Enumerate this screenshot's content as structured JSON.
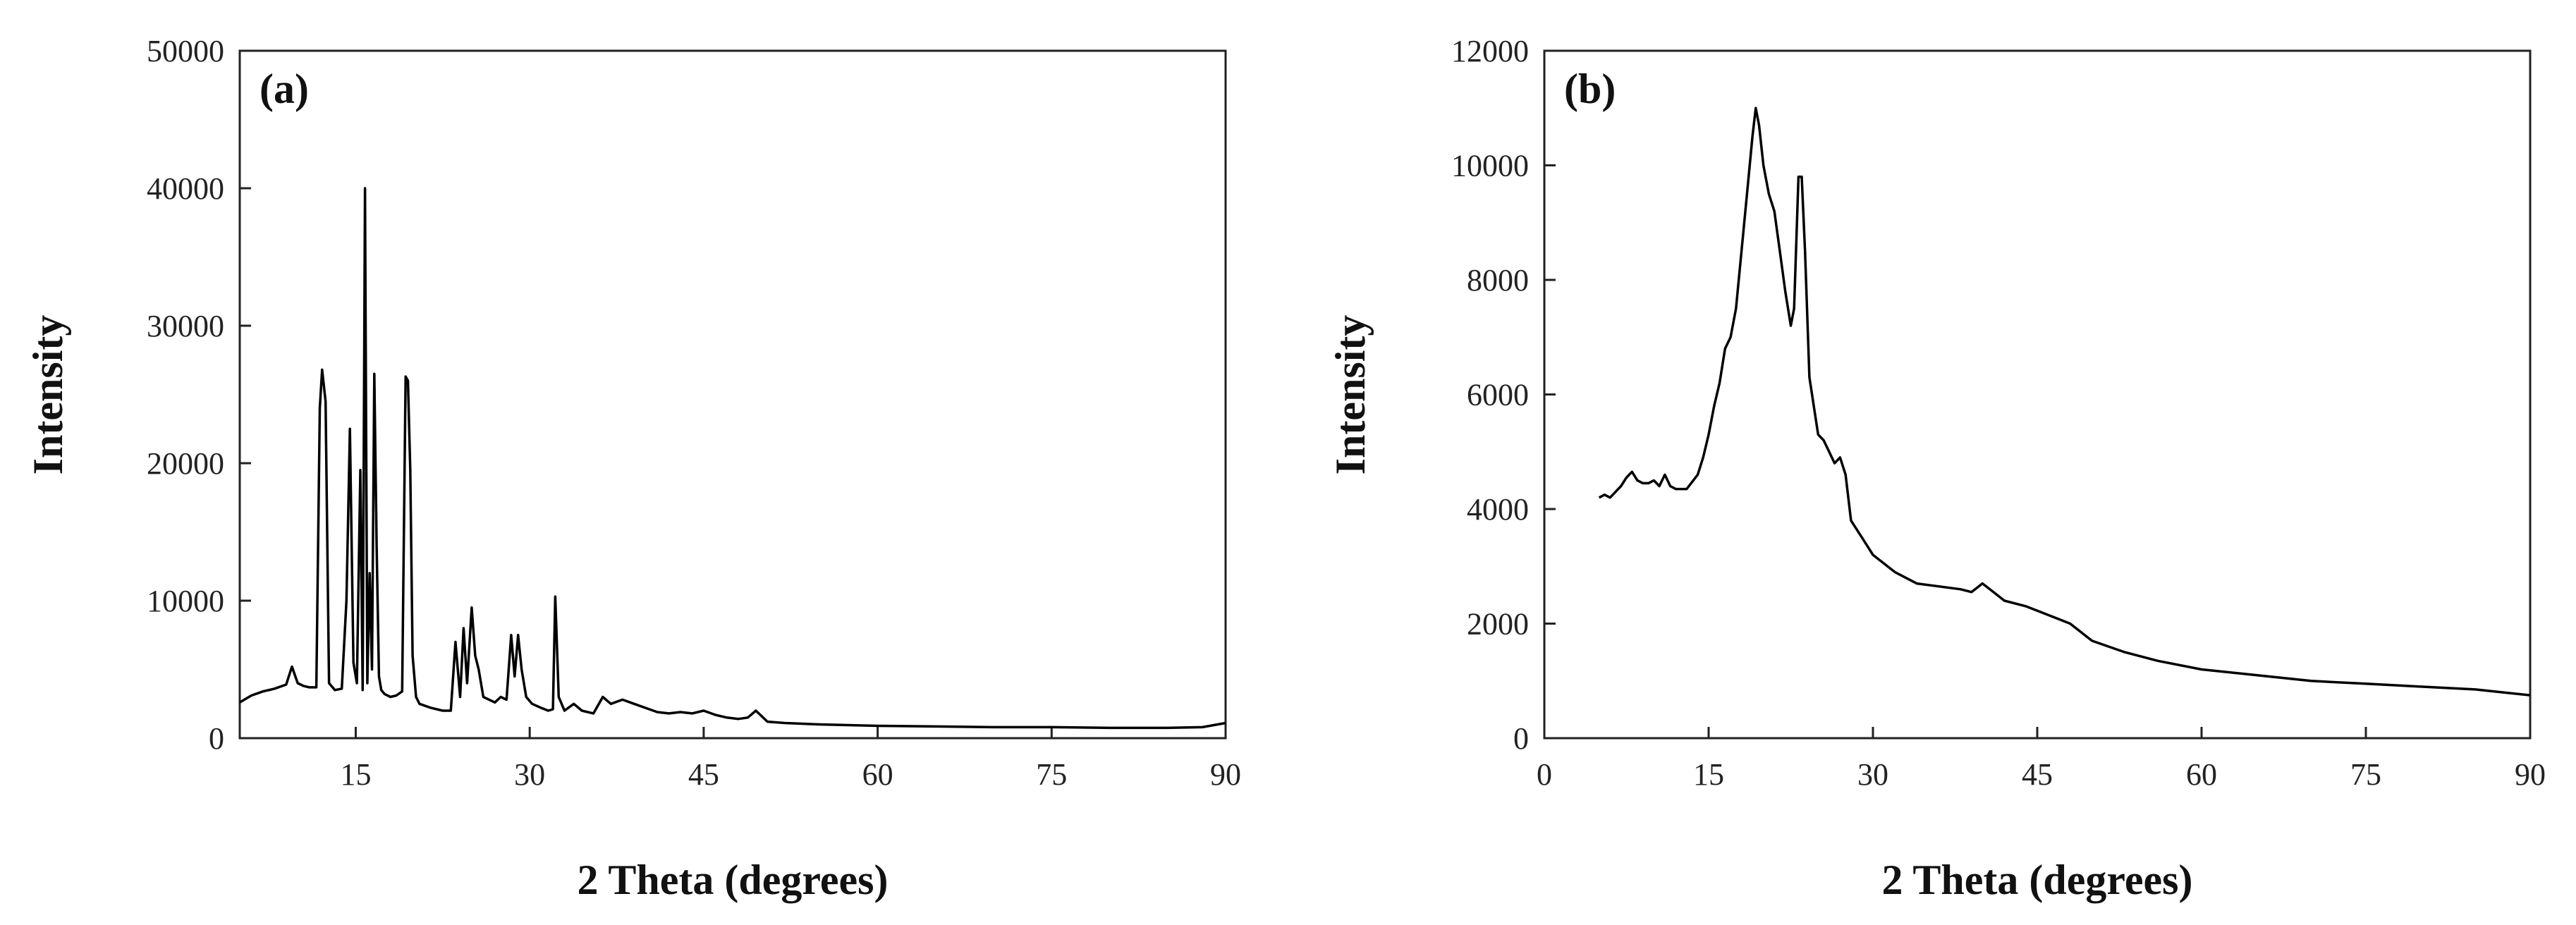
{
  "chart_data": [
    {
      "type": "line",
      "panel_label": "(a)",
      "xlabel": "2 Theta (degrees)",
      "ylabel": "Intensity",
      "xlim": [
        5,
        90
      ],
      "ylim": [
        0,
        50000
      ],
      "xticks": [
        15,
        30,
        45,
        60,
        75,
        90
      ],
      "yticks": [
        0,
        10000,
        20000,
        30000,
        40000,
        50000
      ],
      "grid": false,
      "series": [
        {
          "x": [
            5,
            6,
            7,
            8,
            9,
            9.5,
            10,
            10.5,
            11,
            11.6,
            11.9,
            12.1,
            12.4,
            12.7,
            13.2,
            13.8,
            14.2,
            14.5,
            14.8,
            15.1,
            15.4,
            15.6,
            15.8,
            16.0,
            16.2,
            16.4,
            16.6,
            16.8,
            17.0,
            17.2,
            17.5,
            18.0,
            18.5,
            19.0,
            19.3,
            19.5,
            19.7,
            19.9,
            20.2,
            20.5,
            21.5,
            22.5,
            23.2,
            23.6,
            24.0,
            24.3,
            24.6,
            25.0,
            25.3,
            25.6,
            26.0,
            26.5,
            27.0,
            27.5,
            28.0,
            28.4,
            28.7,
            29.0,
            29.3,
            29.7,
            30.2,
            31.0,
            31.6,
            32.0,
            32.2,
            32.5,
            33.0,
            33.8,
            34.5,
            35.5,
            36.3,
            37.0,
            38.0,
            39.0,
            40.0,
            41.0,
            42.0,
            43.0,
            44.0,
            45.0,
            46.0,
            47.0,
            48.0,
            48.8,
            49.5,
            50.5,
            52.0,
            55.0,
            60.0,
            65.0,
            70.0,
            75.0,
            80.0,
            85.0,
            88.0,
            90.0
          ],
          "y": [
            2600,
            3100,
            3400,
            3600,
            3900,
            5200,
            4000,
            3800,
            3700,
            3700,
            24000,
            26800,
            24500,
            4000,
            3500,
            3600,
            10000,
            22500,
            5500,
            4000,
            19500,
            3500,
            40000,
            4000,
            12000,
            5000,
            26500,
            14000,
            4500,
            3500,
            3200,
            3000,
            3100,
            3400,
            26300,
            26000,
            19500,
            6000,
            3000,
            2500,
            2200,
            2000,
            2000,
            7000,
            3000,
            8000,
            4000,
            9500,
            6000,
            5000,
            3000,
            2800,
            2600,
            3000,
            2800,
            7500,
            4500,
            7500,
            5000,
            3000,
            2500,
            2200,
            2000,
            2100,
            10300,
            3000,
            2000,
            2500,
            2000,
            1800,
            3000,
            2500,
            2800,
            2500,
            2200,
            1900,
            1800,
            1900,
            1800,
            2000,
            1700,
            1500,
            1400,
            1500,
            2000,
            1200,
            1100,
            1000,
            900,
            850,
            800,
            800,
            750,
            750,
            800,
            1100
          ]
        }
      ]
    },
    {
      "type": "line",
      "panel_label": "(b)",
      "xlabel": "2 Theta (degrees)",
      "ylabel": "Intensity",
      "xlim": [
        0,
        90
      ],
      "ylim": [
        0,
        12000
      ],
      "xticks": [
        0,
        15,
        30,
        45,
        60,
        75,
        90
      ],
      "yticks": [
        0,
        2000,
        4000,
        6000,
        8000,
        10000,
        12000
      ],
      "grid": false,
      "series": [
        {
          "x": [
            5,
            5.5,
            6,
            6.5,
            7,
            7.5,
            8,
            8.5,
            9,
            9.5,
            10,
            10.5,
            11,
            11.5,
            12,
            13,
            14,
            14.5,
            15,
            15.5,
            16,
            16.5,
            17,
            17.5,
            18,
            18.5,
            19,
            19.3,
            19.6,
            20,
            20.5,
            21,
            21.5,
            22,
            22.5,
            22.8,
            23.2,
            23.5,
            23.8,
            24.2,
            24.6,
            25,
            25.5,
            26,
            26.5,
            27,
            27.5,
            28,
            29,
            30,
            32,
            34,
            36,
            38,
            39,
            40,
            41,
            42,
            44,
            46,
            48,
            50,
            53,
            56,
            60,
            65,
            70,
            75,
            80,
            85,
            90
          ],
          "y": [
            4200,
            4250,
            4200,
            4300,
            4400,
            4550,
            4650,
            4500,
            4450,
            4450,
            4500,
            4400,
            4600,
            4400,
            4350,
            4350,
            4600,
            4900,
            5300,
            5800,
            6200,
            6800,
            7000,
            7500,
            8500,
            9500,
            10500,
            11000,
            10700,
            10000,
            9500,
            9200,
            8500,
            7800,
            7200,
            7500,
            9800,
            9800,
            8500,
            6300,
            5800,
            5300,
            5200,
            5000,
            4800,
            4900,
            4600,
            3800,
            3500,
            3200,
            2900,
            2700,
            2650,
            2600,
            2550,
            2700,
            2550,
            2400,
            2300,
            2150,
            2000,
            1700,
            1500,
            1350,
            1200,
            1100,
            1000,
            950,
            900,
            850,
            750
          ]
        }
      ]
    }
  ]
}
